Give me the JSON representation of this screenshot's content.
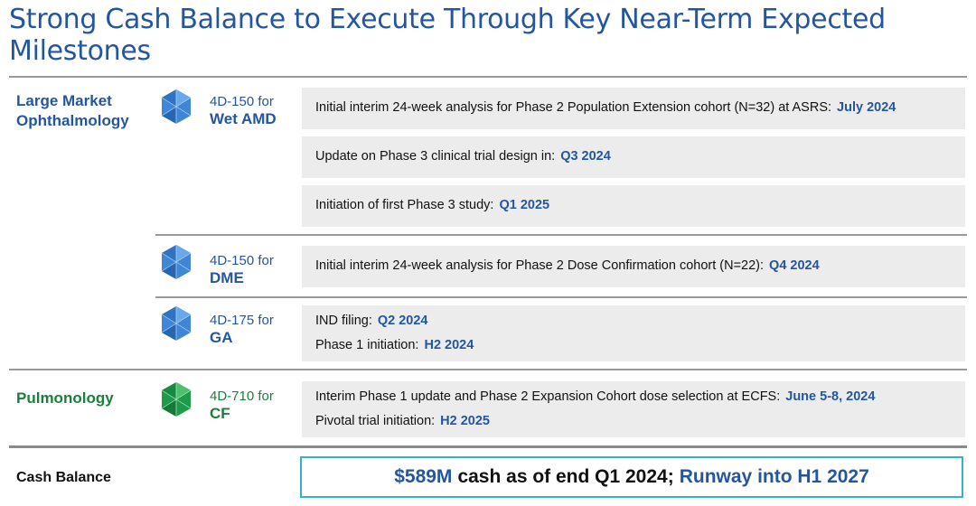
{
  "title": "Strong Cash Balance to Execute Through Key Near-Term Expected Milestones",
  "areas": {
    "ophthalmology": {
      "label_line1": "Large Market",
      "label_line2": "Ophthalmology",
      "color": "#2456a0",
      "programs": [
        {
          "code": "4D-150 for",
          "indication": "Wet AMD",
          "icon": "hexagon-molecule-icon",
          "milestones": [
            {
              "text": "Initial interim 24-week analysis for Phase 2 Population Extension cohort (N=32) at ASRS:",
              "date": "July 2024"
            },
            {
              "text": "Update on Phase 3 clinical trial design in:",
              "date": "Q3 2024"
            },
            {
              "text": "Initiation of first Phase 3 study:",
              "date": "Q1 2025"
            }
          ]
        },
        {
          "code": "4D-150 for",
          "indication": "DME",
          "icon": "hexagon-molecule-icon",
          "milestones": [
            {
              "text": "Initial interim 24-week analysis for Phase 2 Dose Confirmation cohort (N=22):",
              "date": "Q4 2024"
            }
          ]
        },
        {
          "code": "4D-175 for",
          "indication": "GA",
          "icon": "hexagon-molecule-icon",
          "milestones": [
            {
              "text": "IND filing:",
              "date": "Q2 2024"
            },
            {
              "text": "Phase 1 initiation:",
              "date": "H2 2024"
            }
          ]
        }
      ]
    },
    "pulmonology": {
      "label": "Pulmonology",
      "color": "#1a7f3b",
      "programs": [
        {
          "code": "4D-710 for",
          "indication": "CF",
          "icon": "hexagon-molecule-icon",
          "milestones": [
            {
              "text": "Interim Phase 1 update and Phase 2 Expansion Cohort dose selection at ECFS:",
              "date": "June 5-8, 2024"
            },
            {
              "text": "Pivotal trial initiation:",
              "date": "H2 2025"
            }
          ]
        }
      ]
    }
  },
  "cash": {
    "label": "Cash Balance",
    "amount": "$589M",
    "middle": "cash as of end Q1 2024;",
    "runway": "Runway into H1 2027",
    "border_color": "#31b2d0"
  }
}
